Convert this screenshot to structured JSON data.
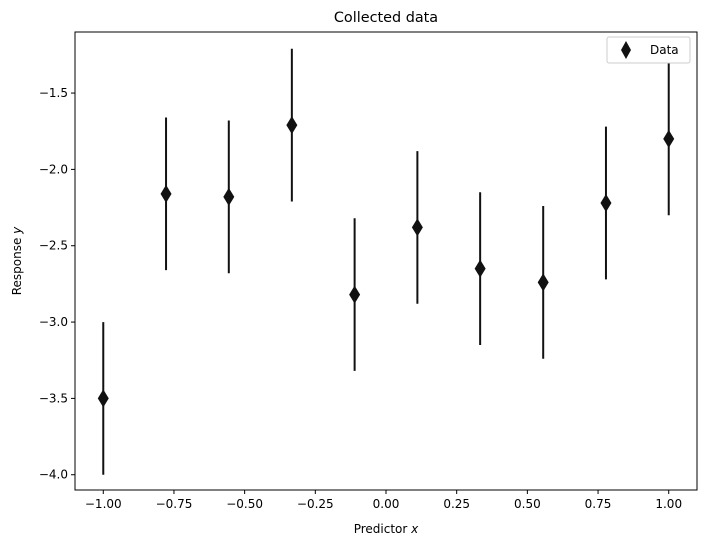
{
  "chart_data": {
    "type": "scatter",
    "title": "Collected data",
    "xlabel": "Predictor",
    "xlabel_var": "x",
    "ylabel": "Response",
    "ylabel_var": "y",
    "xlim": [
      -1.1,
      1.1
    ],
    "ylim": [
      -4.1,
      -1.1
    ],
    "xticks": [
      -1.0,
      -0.75,
      -0.5,
      -0.25,
      0.0,
      0.25,
      0.5,
      0.75,
      1.0
    ],
    "xtick_labels": [
      "−1.00",
      "−0.75",
      "−0.50",
      "−0.25",
      "0.00",
      "0.25",
      "0.50",
      "0.75",
      "1.00"
    ],
    "yticks": [
      -4.0,
      -3.5,
      -3.0,
      -2.5,
      -2.0,
      -1.5
    ],
    "ytick_labels": [
      "−4.0",
      "−3.5",
      "−3.0",
      "−2.5",
      "−2.0",
      "−1.5"
    ],
    "grid": false,
    "legend_position": "top-right",
    "series": [
      {
        "name": "Data",
        "marker": "diamond",
        "color": "#111111",
        "x": [
          -1.0,
          -0.778,
          -0.556,
          -0.333,
          -0.111,
          0.111,
          0.333,
          0.556,
          0.778,
          1.0
        ],
        "y": [
          -3.5,
          -2.16,
          -2.18,
          -1.71,
          -2.82,
          -2.38,
          -2.65,
          -2.74,
          -2.22,
          -1.8
        ],
        "yerr": [
          0.5,
          0.5,
          0.5,
          0.5,
          0.5,
          0.5,
          0.5,
          0.5,
          0.5,
          0.5
        ]
      }
    ]
  }
}
